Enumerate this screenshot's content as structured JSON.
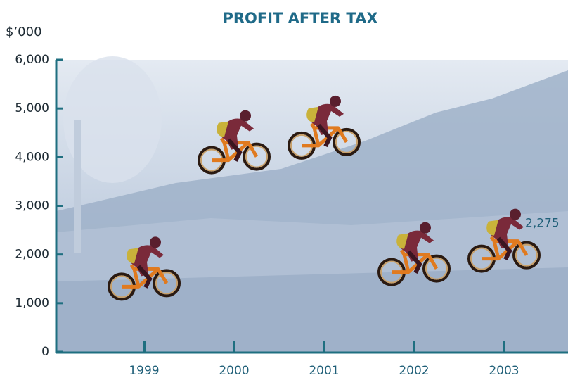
{
  "chart_data": {
    "type": "pictogram",
    "title": "PROFIT AFTER TAX",
    "y_label": "$’000",
    "categories": [
      "1999",
      "2000",
      "2001",
      "2002",
      "2003"
    ],
    "values": [
      1700,
      4300,
      4600,
      2000,
      2275
    ],
    "value_labels": [
      null,
      null,
      null,
      null,
      "2,275"
    ],
    "ylim": [
      0,
      6000
    ],
    "yticks": [
      0,
      {
        "value": 1000,
        "label": "1,000"
      },
      {
        "value": 2000,
        "label": "2,000"
      },
      {
        "value": 3000,
        "label": "3,000"
      },
      {
        "value": 4000,
        "label": "4,000"
      },
      {
        "value": 5000,
        "label": "5,000"
      },
      {
        "value": 6000,
        "label": "6,000"
      }
    ],
    "color": "#e07a1f"
  }
}
